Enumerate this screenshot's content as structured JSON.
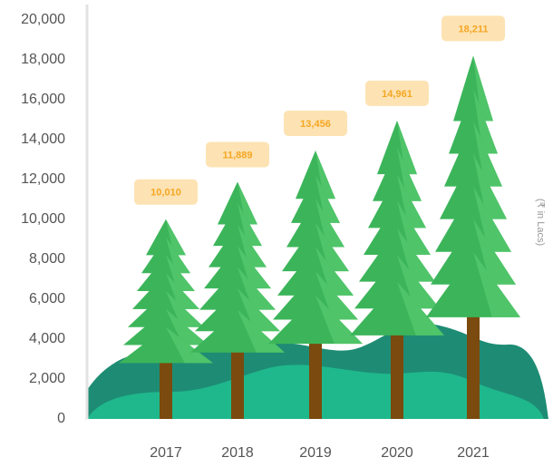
{
  "chart_data": {
    "type": "tree-bar",
    "y_axis_label": "(₹ in Lacs)",
    "categories": [
      "2017",
      "2018",
      "2019",
      "2020",
      "2021"
    ],
    "values": [
      10010,
      11889,
      13456,
      14961,
      18211
    ],
    "value_labels": [
      "10,010",
      "11,889",
      "13,456",
      "14,961",
      "18,211"
    ],
    "color": "#3cb55a",
    "ylim": [
      0,
      20000
    ],
    "yticks": [
      0,
      {
        "value": 2000,
        "label": "2,000"
      },
      {
        "value": 4000,
        "label": "4,000"
      },
      {
        "value": 6000,
        "label": "6,000"
      },
      {
        "value": 8000,
        "label": "8,000"
      },
      {
        "value": 10000,
        "label": "10,000"
      },
      {
        "value": 12000,
        "label": "12,000"
      },
      {
        "value": 14000,
        "label": "14,000"
      },
      {
        "value": 16000,
        "label": "16,000"
      },
      {
        "value": 18000,
        "label": "18,000"
      },
      {
        "value": 20000,
        "label": "20,000"
      }
    ]
  }
}
